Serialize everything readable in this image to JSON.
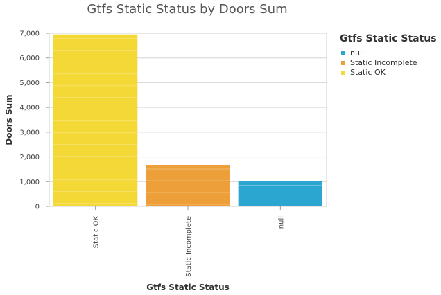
{
  "chart_data": {
    "type": "bar",
    "title": "Gtfs Static Status by Doors Sum",
    "xlabel": "Gtfs Static Status",
    "ylabel": "Doors Sum",
    "categories": [
      "Static OK",
      "Static Incomplete",
      "null"
    ],
    "values": [
      6950,
      1680,
      1020
    ],
    "colors": [
      "#f4d835",
      "#ed9f3a",
      "#2aa6d0"
    ],
    "ylim": [
      0,
      7000
    ],
    "yticks": [
      0,
      1000,
      2000,
      3000,
      4000,
      5000,
      6000,
      7000
    ],
    "ytick_labels": [
      "0",
      "1,000",
      "2,000",
      "3,000",
      "4,000",
      "5,000",
      "6,000",
      "7,000"
    ],
    "grid": true,
    "legend": {
      "title": "Gtfs Static Status",
      "placement": "right",
      "entries": [
        {
          "label": "null",
          "color": "#2aa6d0"
        },
        {
          "label": "Static Incomplete",
          "color": "#ed9f3a"
        },
        {
          "label": "Static OK",
          "color": "#f4d835"
        }
      ]
    }
  }
}
